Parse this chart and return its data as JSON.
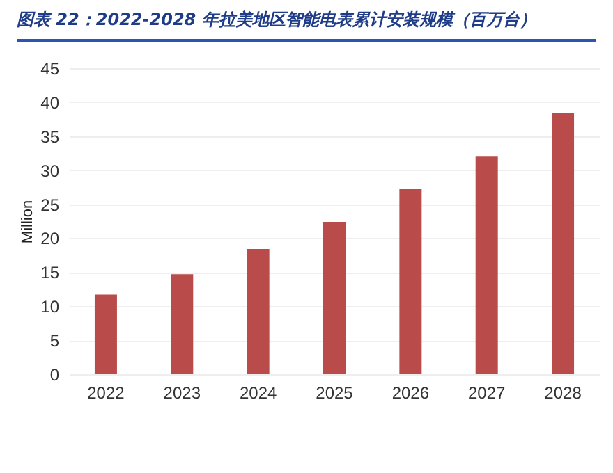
{
  "chart_data": {
    "type": "bar",
    "title": "图表 22：2022-2028 年拉美地区智能电表累计安装规模（百万台）",
    "ylabel": "Million",
    "categories": [
      "2022",
      "2023",
      "2024",
      "2025",
      "2026",
      "2027",
      "2028"
    ],
    "values": [
      11.7,
      14.7,
      18.4,
      22.4,
      27.2,
      32.1,
      38.4
    ],
    "color": "#b94c4b",
    "ylim": [
      0,
      45
    ],
    "yticks": [
      0,
      5,
      10,
      15,
      20,
      25,
      30,
      35,
      40,
      45
    ],
    "grid": "y"
  }
}
